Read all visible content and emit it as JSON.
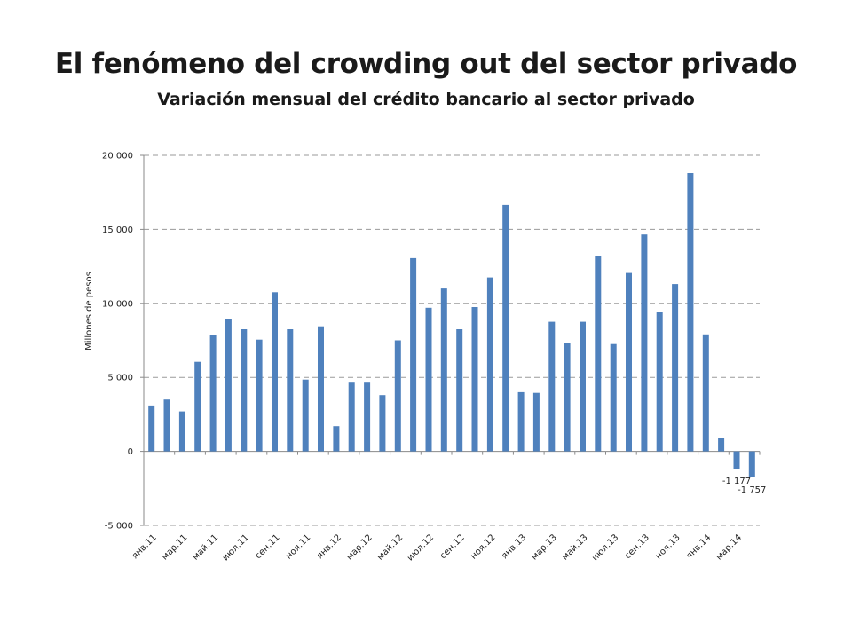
{
  "title": "El fenómeno del crowding out del sector privado",
  "subtitle": "Variación mensual del crédito bancario al sector privado",
  "chart_data": {
    "type": "bar",
    "ylabel": "Millones de pesos",
    "xlabel": "",
    "ylim": [
      -5000,
      20000
    ],
    "yticks": [
      -5000,
      0,
      5000,
      10000,
      15000,
      20000
    ],
    "ytick_labels": [
      "-5 000",
      "0",
      "5 000",
      "10 000",
      "15 000",
      "20 000"
    ],
    "grid": "horizontal dashed",
    "color": "#4F81BD",
    "categories": [
      "янв.11",
      "фев.11",
      "мар.11",
      "апр.11",
      "май.11",
      "июн.11",
      "июл.11",
      "авг.11",
      "сен.11",
      "окт.11",
      "ноя.11",
      "дек.11",
      "янв.12",
      "фев.12",
      "мар.12",
      "апр.12",
      "май.12",
      "июн.12",
      "июл.12",
      "авг.12",
      "сен.12",
      "окт.12",
      "ноя.12",
      "дек.12",
      "янв.13",
      "фев.13",
      "мар.13",
      "апр.13",
      "май.13",
      "июн.13",
      "июл.13",
      "авг.13",
      "сен.13",
      "окт.13",
      "ноя.13",
      "дек.13",
      "янв.14",
      "фев.14",
      "мар.14",
      "апр.14"
    ],
    "shown_tick_labels": [
      "янв.11",
      "мар.11",
      "май.11",
      "июл.11",
      "сен.11",
      "ноя.11",
      "янв.12",
      "мар.12",
      "май.12",
      "июл.12",
      "сен.12",
      "ноя.12",
      "янв.13",
      "мар.13",
      "май.13",
      "июл.13",
      "сен.13",
      "ноя.13",
      "янв.14",
      "мар.14"
    ],
    "values": [
      3100,
      3500,
      2700,
      6050,
      7850,
      8950,
      8250,
      7550,
      10750,
      8250,
      4850,
      8450,
      1700,
      4700,
      4700,
      3800,
      7500,
      13050,
      9700,
      11000,
      8250,
      9750,
      11750,
      16650,
      4000,
      3950,
      8750,
      7300,
      8750,
      13200,
      7250,
      12050,
      14650,
      9450,
      11300,
      18800,
      7900,
      900,
      -1177,
      -1757
    ],
    "data_labels": [
      {
        "category": "мар.14",
        "label": "-1 177"
      },
      {
        "category": "апр.14",
        "label": "-1 757"
      }
    ]
  }
}
